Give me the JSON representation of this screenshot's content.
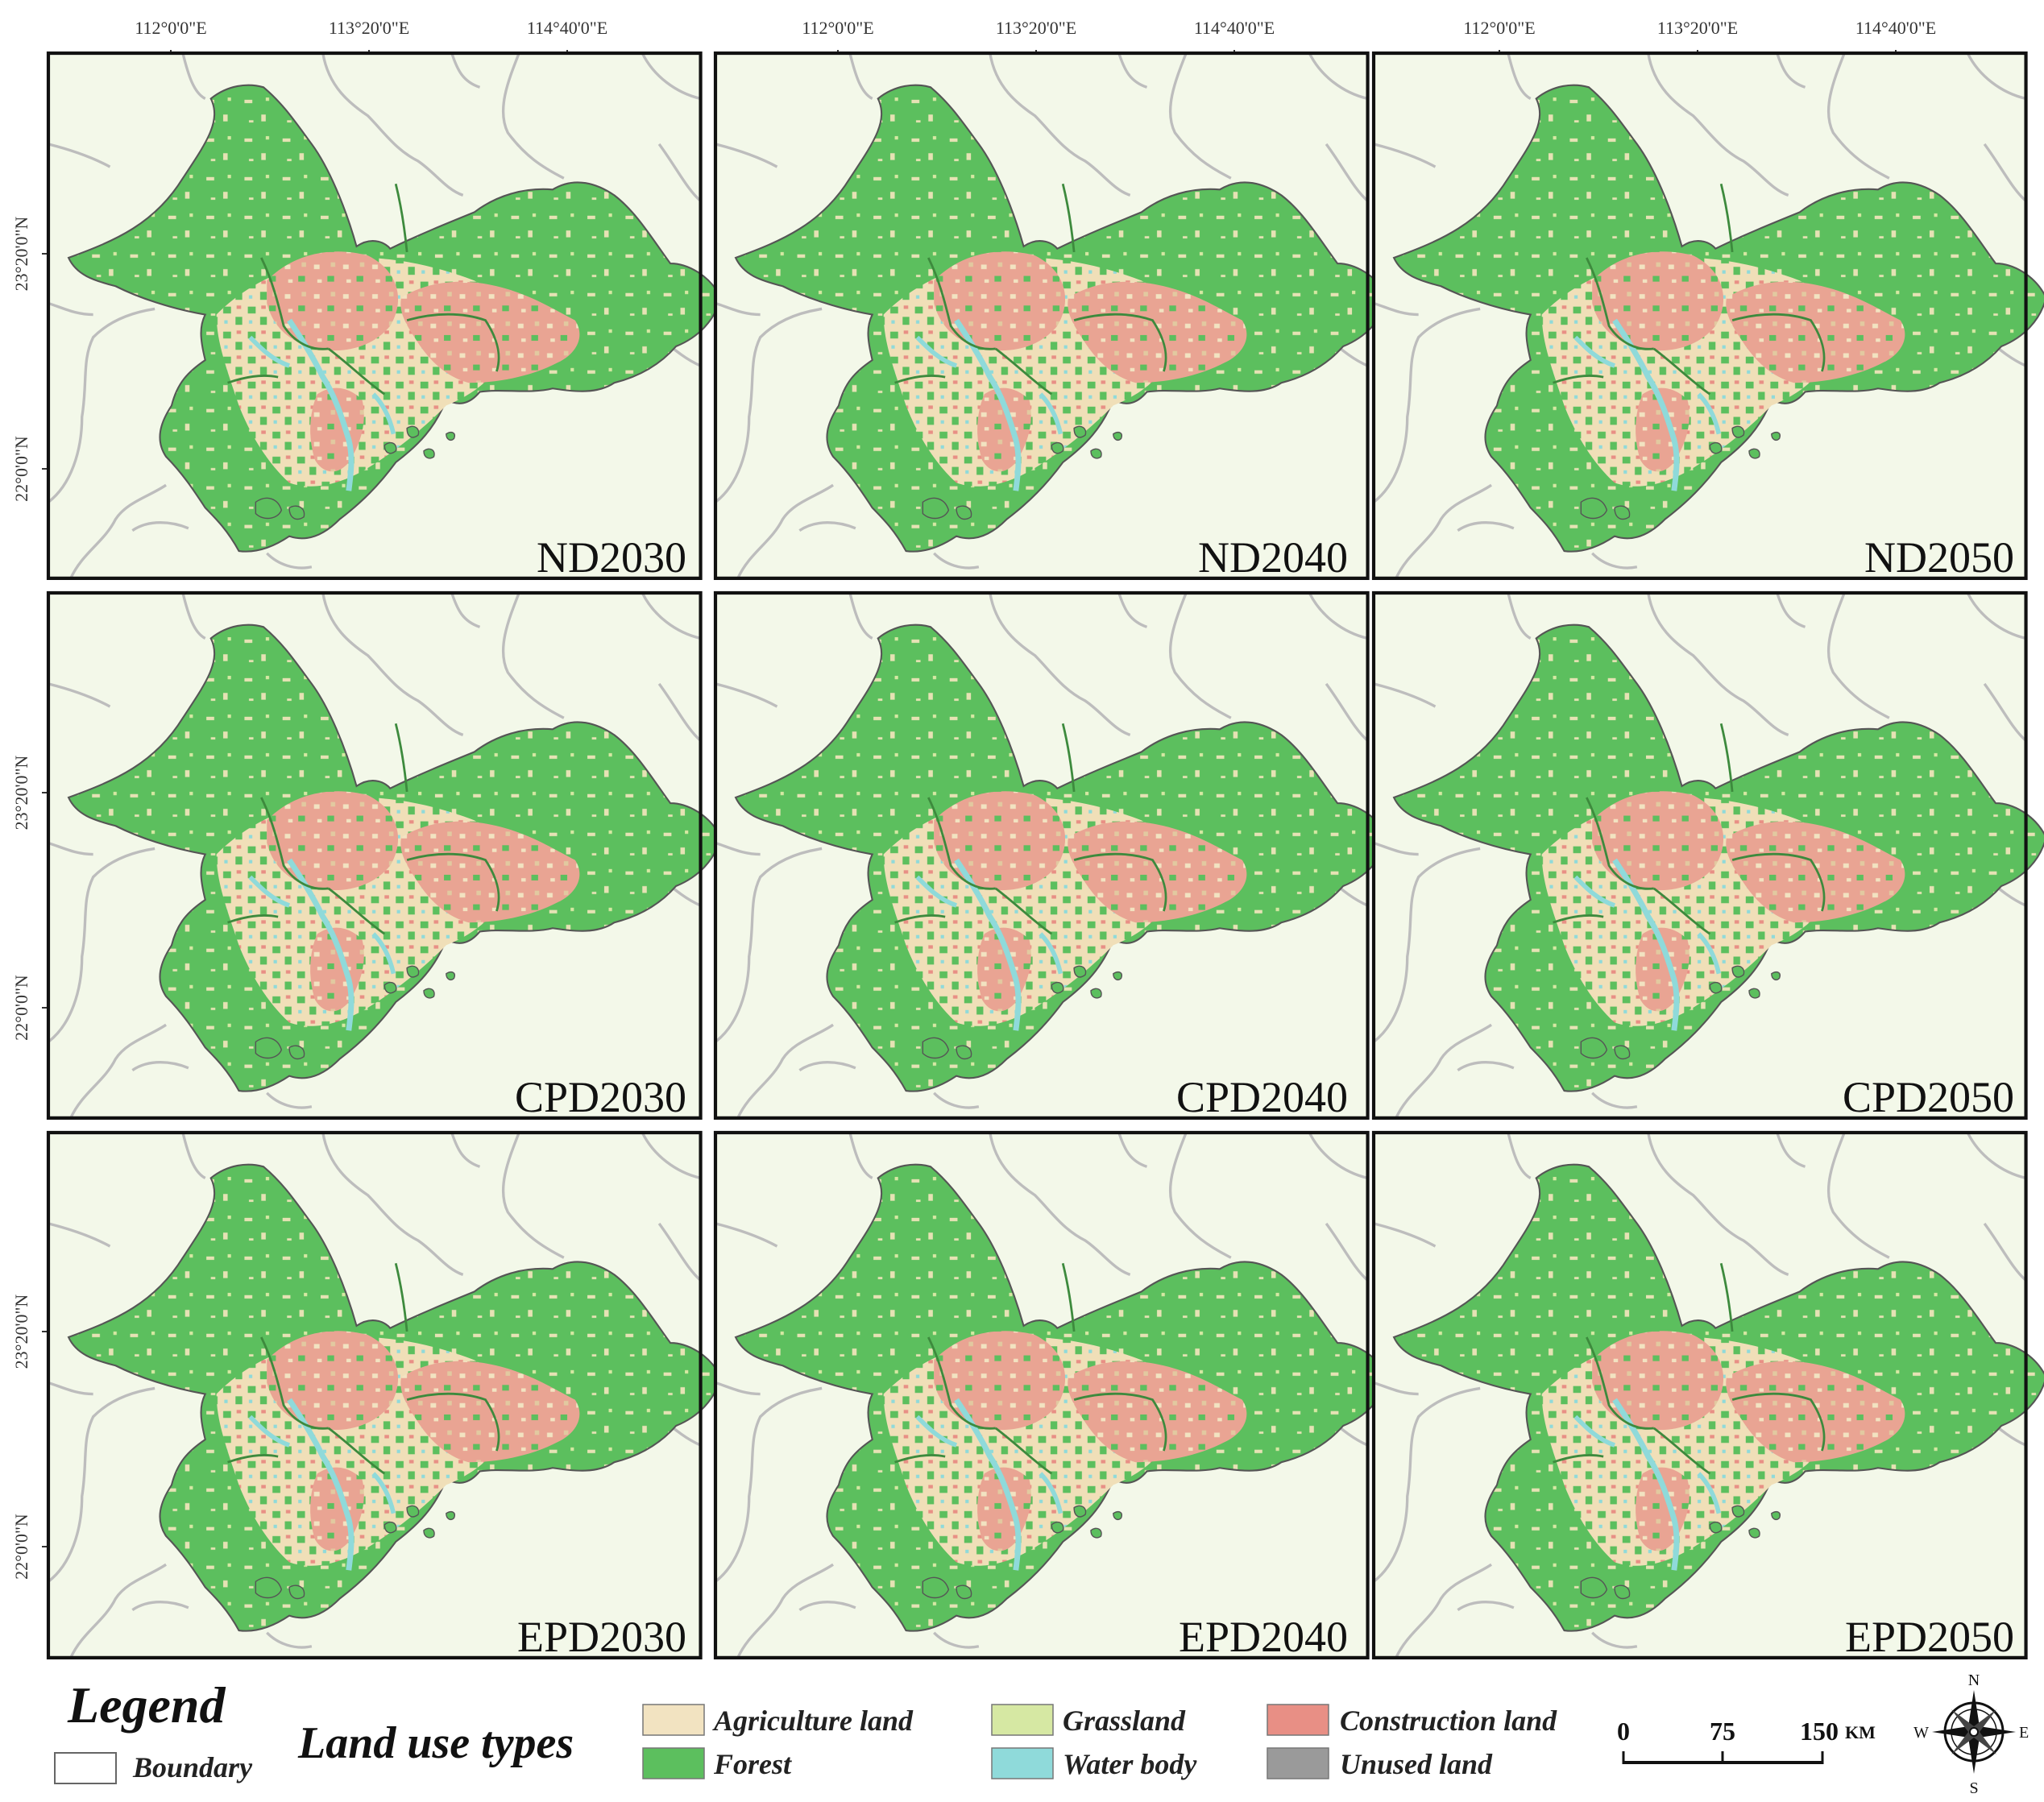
{
  "axes": {
    "x_ticks": [
      "112°0'0\"E",
      "113°20'0\"E",
      "114°40'0\"E"
    ],
    "y_ticks": [
      "23°20'0\"N",
      "22°0'0\"N"
    ]
  },
  "panels": [
    {
      "label": "ND2030"
    },
    {
      "label": "ND2040"
    },
    {
      "label": "ND2050"
    },
    {
      "label": "CPD2030"
    },
    {
      "label": "CPD2040"
    },
    {
      "label": "CPD2050"
    },
    {
      "label": "EPD2030"
    },
    {
      "label": "EPD2040"
    },
    {
      "label": "EPD2050"
    }
  ],
  "legend": {
    "title": "Legend",
    "boundary_label": "Boundary",
    "subtitle": "Land use types",
    "items": [
      {
        "label": "Agriculture land",
        "color": "#f2e3c1"
      },
      {
        "label": "Forest",
        "color": "#5cbf5e"
      },
      {
        "label": "Grassland",
        "color": "#d6e8a3"
      },
      {
        "label": "Water body",
        "color": "#8fdada"
      },
      {
        "label": "Construction land",
        "color": "#e88f85"
      },
      {
        "label": "Unused land",
        "color": "#9a9a9a"
      }
    ]
  },
  "scale_bar": {
    "labels": [
      "0",
      "75",
      "150"
    ],
    "unit": "KM"
  },
  "compass": {
    "n": "N",
    "s": "S",
    "e": "E",
    "w": "W"
  },
  "colors": {
    "background_land": "#f3f8e9",
    "boundary": "#bdbdbd",
    "county_line": "#3d8a3d"
  }
}
